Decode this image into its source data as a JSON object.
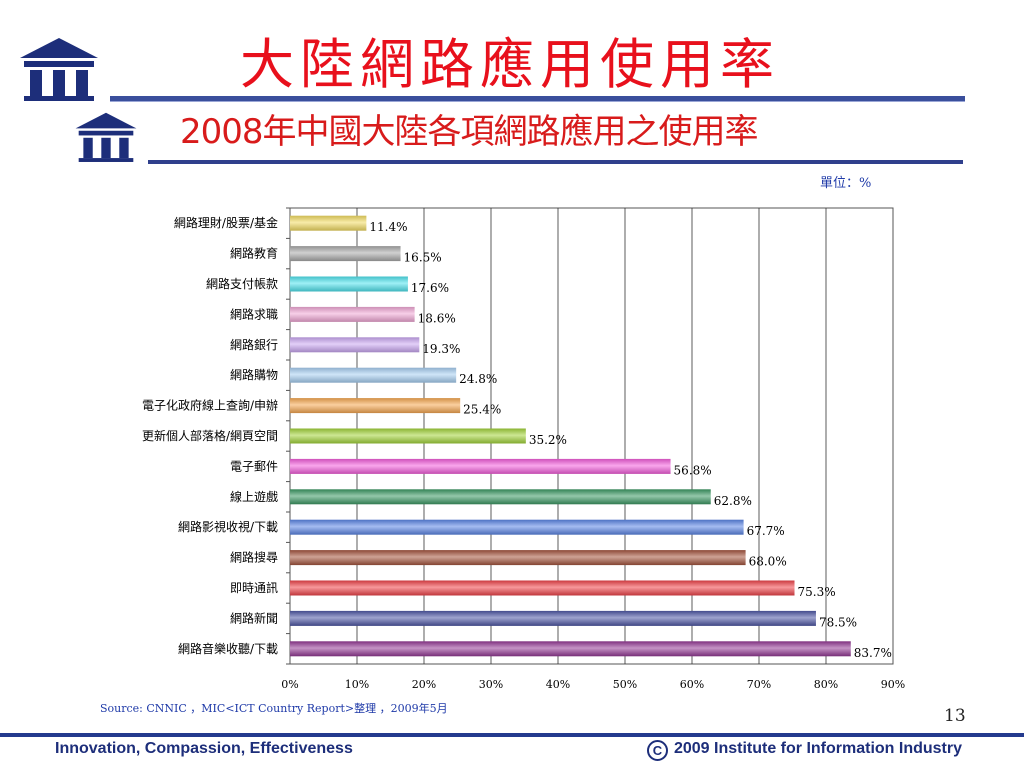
{
  "slide": {
    "title": "大陸網路應用使用率",
    "chart_title": "2008年中國大陸各項網路應用之使用率",
    "unit_label": "單位：%",
    "source": "Source: CNNIC ，MIC<ICT Country Report>整理 ，2009年5月",
    "page_number": "13",
    "footer_left": "Innovation, Compassion, Effectiveness",
    "footer_right": "2009 Institute for Information Industry",
    "copyright_symbol": "C"
  },
  "colors": {
    "title_red": "#e8101c",
    "brand_navy": "#1d2e7a"
  },
  "chart_data": {
    "type": "bar",
    "orientation": "horizontal",
    "title": "2008年中國大陸各項網路應用之使用率",
    "unit": "單位：%",
    "categories": [
      "網路理財/股票/基金",
      "網路教育",
      "網路支付帳款",
      "網路求職",
      "網路銀行",
      "網路購物",
      "電子化政府線上查詢/申辦",
      "更新個人部落格/網頁空間",
      "電子郵件",
      "線上遊戲",
      "網路影視收視/下載",
      "網路搜尋",
      "即時通訊",
      "網路新聞",
      "網路音樂收聽/下載"
    ],
    "values": [
      11.4,
      16.5,
      17.6,
      18.6,
      19.3,
      24.8,
      25.4,
      35.2,
      56.8,
      62.8,
      67.7,
      68.0,
      75.3,
      78.5,
      83.7
    ],
    "value_labels": [
      "11.4%",
      "16.5%",
      "17.6%",
      "18.6%",
      "19.3%",
      "24.8%",
      "25.4%",
      "35.2%",
      "56.8%",
      "62.8%",
      "67.7%",
      "68.0%",
      "75.3%",
      "78.5%",
      "83.7%"
    ],
    "bar_colors": [
      "#f2dc63",
      "#aaaaaa",
      "#4fe3ee",
      "#f1a8d6",
      "#cba8f2",
      "#a8cff2",
      "#f6a851",
      "#a2d43b",
      "#f45edc",
      "#3c9a64",
      "#5b86e6",
      "#a5553f",
      "#f0444a",
      "#4f58a6",
      "#953a96"
    ],
    "xlim": [
      0,
      90
    ],
    "xticks": [
      0,
      10,
      20,
      30,
      40,
      50,
      60,
      70,
      80,
      90
    ],
    "xtick_labels": [
      "0%",
      "10%",
      "20%",
      "30%",
      "40%",
      "50%",
      "60%",
      "70%",
      "80%",
      "90%"
    ],
    "grid": true,
    "legend": "none"
  }
}
